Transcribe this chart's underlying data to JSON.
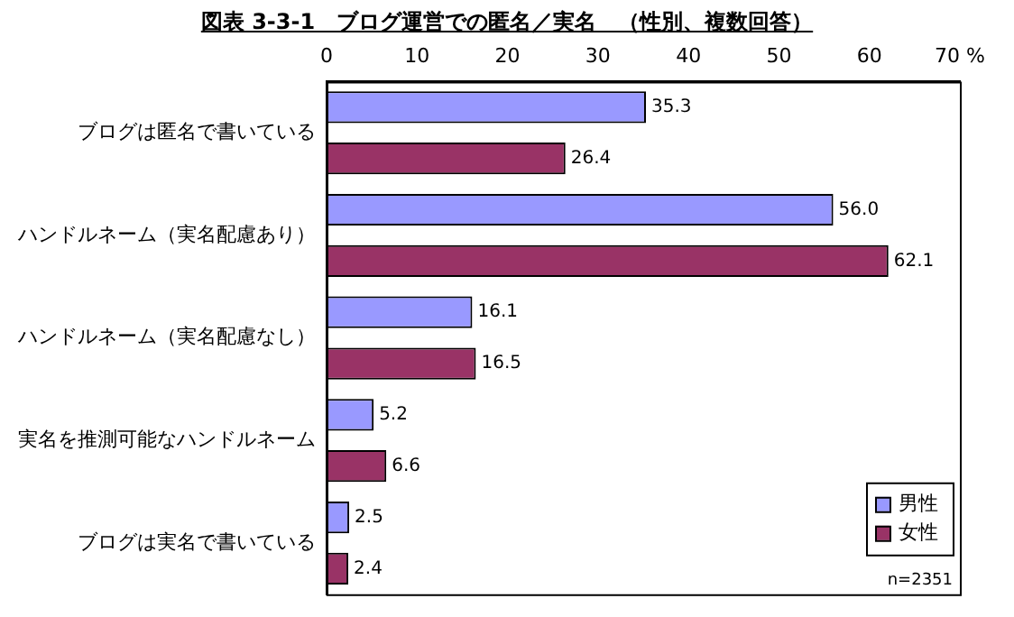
{
  "chart_data": {
    "type": "bar",
    "orientation": "horizontal",
    "title": "図表 3-3-1　ブログ運営での匿名／実名　（性別、複数回答）",
    "categories": [
      "ブログは匿名で書いている",
      "ハンドルネーム（実名配慮あり）",
      "ハンドルネーム（実名配慮なし）",
      "実名を推測可能なハンドルネーム",
      "ブログは実名で書いている"
    ],
    "series": [
      {
        "name": "男性",
        "color": "#9999ff",
        "values": [
          35.3,
          56.0,
          16.1,
          5.2,
          2.5
        ],
        "value_labels": [
          "35.3",
          "56.0",
          "16.1",
          "5.2",
          "2.5"
        ]
      },
      {
        "name": "女性",
        "color": "#993366",
        "values": [
          26.4,
          62.1,
          16.5,
          6.6,
          2.4
        ],
        "value_labels": [
          "26.4",
          "62.1",
          "16.5",
          "6.6",
          "2.4"
        ]
      }
    ],
    "xlim": [
      0,
      70
    ],
    "xticks": [
      0,
      10,
      20,
      30,
      40,
      50,
      60,
      {
        "value": 70,
        "label": "70 %"
      }
    ],
    "legend": "bottom right",
    "grid": false,
    "annotations": [
      "n=2351"
    ]
  }
}
